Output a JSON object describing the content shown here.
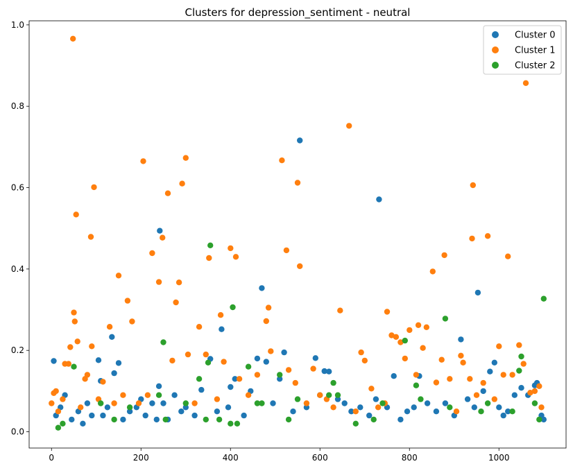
{
  "chart_data": {
    "type": "scatter",
    "title": "Clusters for depression_sentiment - neutral",
    "xlabel": "",
    "ylabel": "",
    "xlim": [
      -50,
      1150
    ],
    "ylim": [
      -0.04,
      1.01
    ],
    "x_ticks": [
      0,
      200,
      400,
      600,
      800,
      1000
    ],
    "y_ticks": [
      0.0,
      0.2,
      0.4,
      0.6,
      0.8,
      1.0
    ],
    "grid": false,
    "legend_position": "top-right",
    "series": [
      {
        "name": "Cluster 0",
        "color": "#1f77b4",
        "points": [
          [
            5,
            0.174
          ],
          [
            10,
            0.04
          ],
          [
            20,
            0.06
          ],
          [
            30,
            0.09
          ],
          [
            45,
            0.03
          ],
          [
            60,
            0.05
          ],
          [
            70,
            0.02
          ],
          [
            80,
            0.07
          ],
          [
            90,
            0.04
          ],
          [
            105,
            0.176
          ],
          [
            110,
            0.125
          ],
          [
            115,
            0.04
          ],
          [
            125,
            0.06
          ],
          [
            135,
            0.233
          ],
          [
            140,
            0.144
          ],
          [
            150,
            0.169
          ],
          [
            160,
            0.03
          ],
          [
            175,
            0.05
          ],
          [
            190,
            0.06
          ],
          [
            200,
            0.08
          ],
          [
            210,
            0.04
          ],
          [
            225,
            0.07
          ],
          [
            235,
            0.03
          ],
          [
            240,
            0.112
          ],
          [
            242,
            0.494
          ],
          [
            250,
            0.07
          ],
          [
            260,
            0.03
          ],
          [
            275,
            0.09
          ],
          [
            290,
            0.05
          ],
          [
            300,
            0.06
          ],
          [
            320,
            0.04
          ],
          [
            335,
            0.103
          ],
          [
            355,
            0.179
          ],
          [
            370,
            0.05
          ],
          [
            380,
            0.252
          ],
          [
            395,
            0.06
          ],
          [
            400,
            0.11
          ],
          [
            410,
            0.13
          ],
          [
            430,
            0.04
          ],
          [
            445,
            0.1
          ],
          [
            460,
            0.18
          ],
          [
            470,
            0.353
          ],
          [
            480,
            0.172
          ],
          [
            495,
            0.07
          ],
          [
            510,
            0.13
          ],
          [
            520,
            0.195
          ],
          [
            540,
            0.05
          ],
          [
            555,
            0.716
          ],
          [
            570,
            0.06
          ],
          [
            590,
            0.181
          ],
          [
            600,
            0.09
          ],
          [
            610,
            0.149
          ],
          [
            620,
            0.148
          ],
          [
            640,
            0.08
          ],
          [
            655,
            0.07
          ],
          [
            670,
            0.05
          ],
          [
            690,
            0.06
          ],
          [
            710,
            0.04
          ],
          [
            725,
            0.08
          ],
          [
            732,
            0.571
          ],
          [
            750,
            0.06
          ],
          [
            765,
            0.137
          ],
          [
            780,
            0.03
          ],
          [
            795,
            0.05
          ],
          [
            810,
            0.06
          ],
          [
            822,
            0.137
          ],
          [
            840,
            0.07
          ],
          [
            860,
            0.05
          ],
          [
            880,
            0.07
          ],
          [
            900,
            0.04
          ],
          [
            915,
            0.227
          ],
          [
            930,
            0.08
          ],
          [
            945,
            0.06
          ],
          [
            953,
            0.342
          ],
          [
            965,
            0.1
          ],
          [
            980,
            0.148
          ],
          [
            990,
            0.17
          ],
          [
            1000,
            0.06
          ],
          [
            1010,
            0.04
          ],
          [
            1020,
            0.05
          ],
          [
            1035,
            0.09
          ],
          [
            1050,
            0.108
          ],
          [
            1065,
            0.09
          ],
          [
            1080,
            0.114
          ],
          [
            1085,
            0.12
          ],
          [
            1095,
            0.04
          ],
          [
            1100,
            0.03
          ]
        ]
      },
      {
        "name": "Cluster 1",
        "color": "#ff7f0e",
        "points": [
          [
            0,
            0.07
          ],
          [
            5,
            0.095
          ],
          [
            10,
            0.1
          ],
          [
            15,
            0.05
          ],
          [
            25,
            0.08
          ],
          [
            30,
            0.167
          ],
          [
            38,
            0.167
          ],
          [
            42,
            0.208
          ],
          [
            48,
            0.966
          ],
          [
            50,
            0.293
          ],
          [
            52,
            0.271
          ],
          [
            55,
            0.534
          ],
          [
            58,
            0.222
          ],
          [
            65,
            0.06
          ],
          [
            75,
            0.13
          ],
          [
            80,
            0.14
          ],
          [
            88,
            0.479
          ],
          [
            90,
            0.21
          ],
          [
            95,
            0.601
          ],
          [
            105,
            0.08
          ],
          [
            115,
            0.123
          ],
          [
            130,
            0.258
          ],
          [
            140,
            0.07
          ],
          [
            150,
            0.384
          ],
          [
            160,
            0.09
          ],
          [
            170,
            0.322
          ],
          [
            180,
            0.271
          ],
          [
            195,
            0.07
          ],
          [
            205,
            0.665
          ],
          [
            215,
            0.09
          ],
          [
            225,
            0.439
          ],
          [
            240,
            0.368
          ],
          [
            248,
            0.477
          ],
          [
            260,
            0.586
          ],
          [
            270,
            0.175
          ],
          [
            278,
            0.318
          ],
          [
            285,
            0.367
          ],
          [
            292,
            0.61
          ],
          [
            300,
            0.673
          ],
          [
            305,
            0.19
          ],
          [
            320,
            0.07
          ],
          [
            330,
            0.258
          ],
          [
            345,
            0.19
          ],
          [
            352,
            0.427
          ],
          [
            370,
            0.08
          ],
          [
            378,
            0.287
          ],
          [
            385,
            0.172
          ],
          [
            400,
            0.451
          ],
          [
            412,
            0.43
          ],
          [
            420,
            0.13
          ],
          [
            440,
            0.09
          ],
          [
            460,
            0.14
          ],
          [
            480,
            0.272
          ],
          [
            485,
            0.305
          ],
          [
            490,
            0.198
          ],
          [
            515,
            0.667
          ],
          [
            525,
            0.446
          ],
          [
            530,
            0.152
          ],
          [
            545,
            0.12
          ],
          [
            550,
            0.612
          ],
          [
            555,
            0.407
          ],
          [
            570,
            0.07
          ],
          [
            585,
            0.155
          ],
          [
            600,
            0.09
          ],
          [
            615,
            0.08
          ],
          [
            630,
            0.06
          ],
          [
            645,
            0.298
          ],
          [
            665,
            0.752
          ],
          [
            680,
            0.05
          ],
          [
            692,
            0.195
          ],
          [
            700,
            0.175
          ],
          [
            715,
            0.106
          ],
          [
            730,
            0.06
          ],
          [
            745,
            0.07
          ],
          [
            750,
            0.295
          ],
          [
            760,
            0.237
          ],
          [
            770,
            0.233
          ],
          [
            780,
            0.22
          ],
          [
            790,
            0.18
          ],
          [
            800,
            0.25
          ],
          [
            815,
            0.14
          ],
          [
            820,
            0.262
          ],
          [
            830,
            0.206
          ],
          [
            838,
            0.257
          ],
          [
            852,
            0.394
          ],
          [
            860,
            0.121
          ],
          [
            872,
            0.177
          ],
          [
            878,
            0.434
          ],
          [
            890,
            0.13
          ],
          [
            905,
            0.05
          ],
          [
            915,
            0.187
          ],
          [
            920,
            0.17
          ],
          [
            935,
            0.13
          ],
          [
            940,
            0.475
          ],
          [
            942,
            0.606
          ],
          [
            950,
            0.09
          ],
          [
            965,
            0.12
          ],
          [
            975,
            0.481
          ],
          [
            990,
            0.08
          ],
          [
            1000,
            0.21
          ],
          [
            1010,
            0.14
          ],
          [
            1020,
            0.431
          ],
          [
            1030,
            0.14
          ],
          [
            1045,
            0.213
          ],
          [
            1055,
            0.167
          ],
          [
            1060,
            0.857
          ],
          [
            1070,
            0.096
          ],
          [
            1080,
            0.1
          ],
          [
            1090,
            0.112
          ],
          [
            1095,
            0.06
          ]
        ]
      },
      {
        "name": "Cluster 2",
        "color": "#2ca02c",
        "points": [
          [
            15,
            0.01
          ],
          [
            25,
            0.02
          ],
          [
            50,
            0.16
          ],
          [
            110,
            0.07
          ],
          [
            140,
            0.03
          ],
          [
            175,
            0.06
          ],
          [
            240,
            0.09
          ],
          [
            250,
            0.22
          ],
          [
            255,
            0.03
          ],
          [
            300,
            0.07
          ],
          [
            330,
            0.13
          ],
          [
            345,
            0.03
          ],
          [
            350,
            0.17
          ],
          [
            355,
            0.458
          ],
          [
            375,
            0.03
          ],
          [
            400,
            0.02
          ],
          [
            405,
            0.306
          ],
          [
            415,
            0.02
          ],
          [
            440,
            0.16
          ],
          [
            460,
            0.07
          ],
          [
            470,
            0.07
          ],
          [
            510,
            0.14
          ],
          [
            530,
            0.03
          ],
          [
            550,
            0.08
          ],
          [
            620,
            0.09
          ],
          [
            630,
            0.12
          ],
          [
            640,
            0.09
          ],
          [
            680,
            0.02
          ],
          [
            720,
            0.03
          ],
          [
            740,
            0.07
          ],
          [
            790,
            0.224
          ],
          [
            815,
            0.114
          ],
          [
            825,
            0.08
          ],
          [
            880,
            0.278
          ],
          [
            890,
            0.06
          ],
          [
            960,
            0.05
          ],
          [
            975,
            0.07
          ],
          [
            1030,
            0.05
          ],
          [
            1045,
            0.15
          ],
          [
            1050,
            0.185
          ],
          [
            1080,
            0.07
          ],
          [
            1090,
            0.03
          ],
          [
            1100,
            0.327
          ]
        ]
      }
    ]
  }
}
